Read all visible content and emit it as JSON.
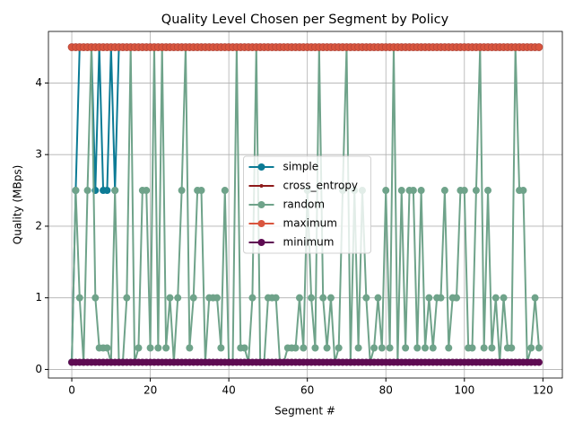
{
  "chart_data": {
    "type": "line",
    "title": "Quality Level Chosen per Segment by Policy",
    "x_label": "Segment #",
    "y_label": "Quality (MBps)",
    "x": [
      0,
      1,
      2,
      3,
      4,
      5,
      6,
      7,
      8,
      9,
      10,
      11,
      12,
      13,
      14,
      15,
      16,
      17,
      18,
      19,
      20,
      21,
      22,
      23,
      24,
      25,
      26,
      27,
      28,
      29,
      30,
      31,
      32,
      33,
      34,
      35,
      36,
      37,
      38,
      39,
      40,
      41,
      42,
      43,
      44,
      45,
      46,
      47,
      48,
      49,
      50,
      51,
      52,
      53,
      54,
      55,
      56,
      57,
      58,
      59,
      60,
      61,
      62,
      63,
      64,
      65,
      66,
      67,
      68,
      69,
      70,
      71,
      72,
      73,
      74,
      75,
      76,
      77,
      78,
      79,
      80,
      81,
      82,
      83,
      84,
      85,
      86,
      87,
      88,
      89,
      90,
      91,
      92,
      93,
      94,
      95,
      96,
      97,
      98,
      99,
      100,
      101,
      102,
      103,
      104,
      105,
      106,
      107,
      108,
      109,
      110,
      111,
      112,
      113,
      114,
      115,
      116,
      117,
      118,
      119
    ],
    "series": [
      {
        "name": "simple",
        "color": "#0c7b95",
        "values": [
          0.1,
          2.5,
          4.5,
          4.5,
          4.5,
          4.5,
          2.5,
          4.5,
          2.5,
          2.5,
          4.5,
          2.5,
          4.5,
          4.5,
          4.5,
          4.5,
          4.5,
          4.5,
          4.5,
          4.5,
          4.5,
          4.5,
          4.5,
          4.5,
          4.5,
          4.5,
          4.5,
          4.5,
          4.5,
          4.5,
          4.5,
          4.5,
          4.5,
          4.5,
          4.5,
          4.5,
          4.5,
          4.5,
          4.5,
          4.5,
          4.5,
          4.5,
          4.5,
          4.5,
          4.5,
          4.5,
          4.5,
          4.5,
          4.5,
          4.5,
          4.5,
          4.5,
          4.5,
          4.5,
          4.5,
          4.5,
          4.5,
          4.5,
          4.5,
          4.5,
          4.5,
          4.5,
          4.5,
          4.5,
          4.5,
          4.5,
          4.5,
          4.5,
          4.5,
          4.5,
          4.5,
          4.5,
          4.5,
          4.5,
          4.5,
          4.5,
          4.5,
          4.5,
          4.5,
          4.5,
          4.5,
          4.5,
          4.5,
          4.5,
          4.5,
          4.5,
          4.5,
          4.5,
          4.5,
          4.5,
          4.5,
          4.5,
          4.5,
          4.5,
          4.5,
          4.5,
          4.5,
          4.5,
          4.5,
          4.5,
          4.5,
          4.5,
          4.5,
          4.5,
          4.5,
          4.5,
          4.5,
          4.5,
          4.5,
          4.5,
          4.5,
          4.5,
          4.5,
          4.5,
          4.5,
          4.5,
          4.5,
          4.5,
          4.5,
          4.5
        ]
      },
      {
        "name": "cross_entropy",
        "color": "#8e1b1b",
        "values": [
          4.5,
          4.5,
          4.5,
          4.5,
          4.5,
          4.5,
          4.5,
          4.5,
          4.5,
          4.5,
          4.5,
          4.5,
          4.5,
          4.5,
          4.5,
          4.5,
          4.5,
          4.5,
          4.5,
          4.5,
          4.5,
          4.5,
          4.5,
          4.5,
          4.5,
          4.5,
          4.5,
          4.5,
          4.5,
          4.5,
          4.5,
          4.5,
          4.5,
          4.5,
          4.5,
          4.5,
          4.5,
          4.5,
          4.5,
          4.5,
          4.5,
          4.5,
          4.5,
          4.5,
          4.5,
          4.5,
          4.5,
          4.5,
          4.5,
          4.5,
          4.5,
          4.5,
          4.5,
          4.5,
          4.5,
          4.5,
          4.5,
          4.5,
          4.5,
          4.5,
          4.5,
          4.5,
          4.5,
          4.5,
          4.5,
          4.5,
          4.5,
          4.5,
          4.5,
          4.5,
          4.5,
          4.5,
          4.5,
          4.5,
          4.5,
          4.5,
          4.5,
          4.5,
          4.5,
          4.5,
          4.5,
          4.5,
          4.5,
          4.5,
          4.5,
          4.5,
          4.5,
          4.5,
          4.5,
          4.5,
          4.5,
          4.5,
          4.5,
          4.5,
          4.5,
          4.5,
          4.5,
          4.5,
          4.5,
          4.5,
          4.5,
          4.5,
          4.5,
          4.5,
          4.5,
          4.5,
          4.5,
          4.5,
          4.5,
          4.5,
          4.5,
          4.5,
          4.5,
          4.5,
          4.5,
          4.5,
          4.5,
          4.5,
          4.5,
          4.5
        ]
      },
      {
        "name": "random",
        "color": "#6fa38a",
        "values": [
          0.1,
          2.5,
          1,
          0.1,
          2.5,
          4.5,
          1,
          0.3,
          0.3,
          0.3,
          0.1,
          2.5,
          0.1,
          0.1,
          1,
          4.5,
          0.1,
          0.3,
          2.5,
          2.5,
          0.3,
          4.5,
          0.3,
          4.5,
          0.3,
          1,
          0.1,
          1,
          2.5,
          4.5,
          0.3,
          1,
          2.5,
          2.5,
          0.1,
          1,
          1,
          1,
          0.3,
          2.5,
          0.1,
          0.1,
          4.5,
          0.3,
          0.3,
          0.1,
          1,
          4.5,
          0.1,
          0.1,
          1,
          1,
          1,
          0.1,
          0.1,
          0.3,
          0.3,
          0.3,
          1,
          0.3,
          2.5,
          1,
          0.3,
          4.5,
          1,
          0.3,
          1,
          0.1,
          0.3,
          2.5,
          4.5,
          0.1,
          2.5,
          0.3,
          2.5,
          1,
          0.1,
          0.3,
          1,
          0.3,
          2.5,
          0.3,
          4.5,
          0.1,
          2.5,
          0.3,
          2.5,
          2.5,
          0.3,
          2.5,
          0.3,
          1,
          0.3,
          1,
          1,
          2.5,
          0.3,
          1,
          1,
          2.5,
          2.5,
          0.3,
          0.3,
          2.5,
          4.5,
          0.3,
          2.5,
          0.3,
          1,
          0.1,
          1,
          0.3,
          0.3,
          4.5,
          2.5,
          2.5,
          0.1,
          0.3,
          1,
          0.3
        ]
      },
      {
        "name": "maximum",
        "color": "#d9553e",
        "values": [
          4.5,
          4.5,
          4.5,
          4.5,
          4.5,
          4.5,
          4.5,
          4.5,
          4.5,
          4.5,
          4.5,
          4.5,
          4.5,
          4.5,
          4.5,
          4.5,
          4.5,
          4.5,
          4.5,
          4.5,
          4.5,
          4.5,
          4.5,
          4.5,
          4.5,
          4.5,
          4.5,
          4.5,
          4.5,
          4.5,
          4.5,
          4.5,
          4.5,
          4.5,
          4.5,
          4.5,
          4.5,
          4.5,
          4.5,
          4.5,
          4.5,
          4.5,
          4.5,
          4.5,
          4.5,
          4.5,
          4.5,
          4.5,
          4.5,
          4.5,
          4.5,
          4.5,
          4.5,
          4.5,
          4.5,
          4.5,
          4.5,
          4.5,
          4.5,
          4.5,
          4.5,
          4.5,
          4.5,
          4.5,
          4.5,
          4.5,
          4.5,
          4.5,
          4.5,
          4.5,
          4.5,
          4.5,
          4.5,
          4.5,
          4.5,
          4.5,
          4.5,
          4.5,
          4.5,
          4.5,
          4.5,
          4.5,
          4.5,
          4.5,
          4.5,
          4.5,
          4.5,
          4.5,
          4.5,
          4.5,
          4.5,
          4.5,
          4.5,
          4.5,
          4.5,
          4.5,
          4.5,
          4.5,
          4.5,
          4.5,
          4.5,
          4.5,
          4.5,
          4.5,
          4.5,
          4.5,
          4.5,
          4.5,
          4.5,
          4.5,
          4.5,
          4.5,
          4.5,
          4.5,
          4.5,
          4.5,
          4.5,
          4.5,
          4.5,
          4.5
        ]
      },
      {
        "name": "minimum",
        "color": "#5e0b52",
        "values": [
          0.1,
          0.1,
          0.1,
          0.1,
          0.1,
          0.1,
          0.1,
          0.1,
          0.1,
          0.1,
          0.1,
          0.1,
          0.1,
          0.1,
          0.1,
          0.1,
          0.1,
          0.1,
          0.1,
          0.1,
          0.1,
          0.1,
          0.1,
          0.1,
          0.1,
          0.1,
          0.1,
          0.1,
          0.1,
          0.1,
          0.1,
          0.1,
          0.1,
          0.1,
          0.1,
          0.1,
          0.1,
          0.1,
          0.1,
          0.1,
          0.1,
          0.1,
          0.1,
          0.1,
          0.1,
          0.1,
          0.1,
          0.1,
          0.1,
          0.1,
          0.1,
          0.1,
          0.1,
          0.1,
          0.1,
          0.1,
          0.1,
          0.1,
          0.1,
          0.1,
          0.1,
          0.1,
          0.1,
          0.1,
          0.1,
          0.1,
          0.1,
          0.1,
          0.1,
          0.1,
          0.1,
          0.1,
          0.1,
          0.1,
          0.1,
          0.1,
          0.1,
          0.1,
          0.1,
          0.1,
          0.1,
          0.1,
          0.1,
          0.1,
          0.1,
          0.1,
          0.1,
          0.1,
          0.1,
          0.1,
          0.1,
          0.1,
          0.1,
          0.1,
          0.1,
          0.1,
          0.1,
          0.1,
          0.1,
          0.1,
          0.1,
          0.1,
          0.1,
          0.1,
          0.1,
          0.1,
          0.1,
          0.1,
          0.1,
          0.1,
          0.1,
          0.1,
          0.1,
          0.1,
          0.1,
          0.1,
          0.1,
          0.1,
          0.1,
          0.1
        ]
      }
    ],
    "xlim": [
      -5.95,
      124.95
    ],
    "ylim": [
      -0.12,
      4.72
    ],
    "xticks": [
      0,
      20,
      40,
      60,
      80,
      100,
      120
    ],
    "yticks": [
      0,
      1,
      2,
      3,
      4
    ],
    "grid": true,
    "legend": "center"
  }
}
